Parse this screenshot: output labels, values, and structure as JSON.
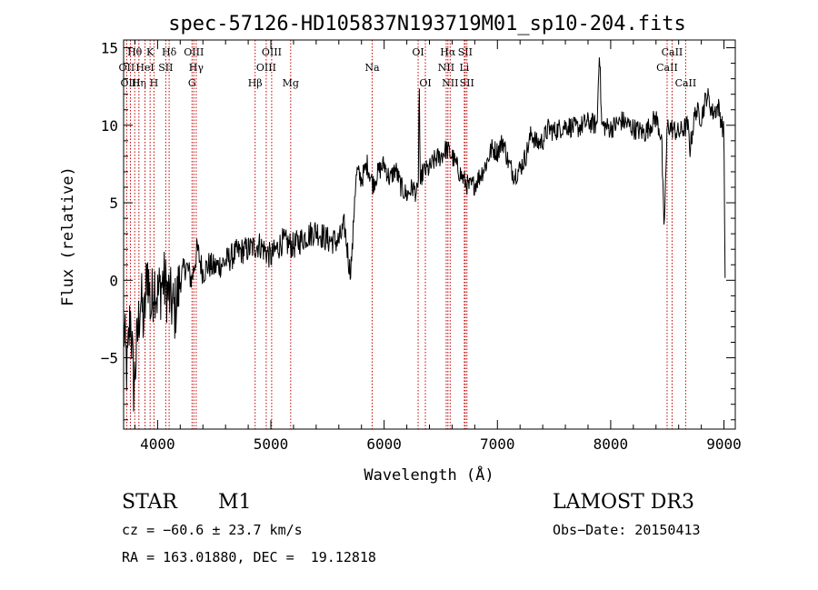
{
  "chart_data": {
    "type": "line",
    "title": "spec-57126-HD105837N193719M01_sp10-204.fits",
    "xlabel": "Wavelength (Å)",
    "ylabel": "Flux (relative)",
    "xlim": [
      3700,
      9100
    ],
    "ylim": [
      -9.6,
      15.5
    ],
    "xticks": [
      4000,
      5000,
      6000,
      7000,
      8000,
      9000
    ],
    "xtick_labels": [
      "4000",
      "5000",
      "6000",
      "7000",
      "8000",
      "9000"
    ],
    "yticks": [
      -5,
      0,
      5,
      10,
      15
    ],
    "ytick_labels": [
      "−5",
      "0",
      "5",
      "10",
      "15"
    ],
    "series": [
      {
        "name": "flux",
        "x": [
          3700,
          3730,
          3760,
          3790,
          3820,
          3850,
          3880,
          3910,
          3940,
          3970,
          4000,
          4050,
          4100,
          4150,
          4200,
          4250,
          4300,
          4350,
          4400,
          4450,
          4500,
          4600,
          4700,
          4800,
          4900,
          5000,
          5100,
          5200,
          5300,
          5400,
          5500,
          5600,
          5650,
          5700,
          5720,
          5740,
          5760,
          5800,
          5850,
          5900,
          5950,
          6000,
          6050,
          6100,
          6150,
          6200,
          6250,
          6300,
          6310,
          6320,
          6330,
          6350,
          6400,
          6450,
          6500,
          6550,
          6600,
          6650,
          6700,
          6750,
          6800,
          6850,
          6900,
          6950,
          7000,
          7050,
          7100,
          7150,
          7200,
          7250,
          7300,
          7350,
          7400,
          7450,
          7500,
          7600,
          7700,
          7800,
          7880,
          7900,
          7920,
          8000,
          8100,
          8200,
          8300,
          8400,
          8450,
          8470,
          8500,
          8600,
          8680,
          8700,
          8750,
          8800,
          8850,
          8900,
          8950,
          9000,
          9010
        ],
        "y": [
          -3,
          -6,
          -2,
          -7,
          -4,
          -1,
          -3,
          1,
          -2,
          0,
          -1,
          0,
          -1,
          -2,
          0,
          1,
          0,
          2,
          0.5,
          1,
          0.8,
          1.2,
          1.8,
          2,
          2.3,
          1.5,
          2.5,
          2.2,
          2.8,
          3.2,
          2.6,
          2.5,
          3.5,
          0.5,
          2,
          5.5,
          7,
          6.5,
          7.5,
          6.2,
          7,
          7.5,
          6.5,
          7.2,
          6,
          5.5,
          6,
          5.5,
          13,
          5.2,
          6.8,
          7,
          7.2,
          7.8,
          8,
          8.5,
          8,
          7.2,
          6.5,
          6,
          6.2,
          6.8,
          7.5,
          8.5,
          8.3,
          9,
          7.5,
          6.8,
          7.2,
          8,
          9.5,
          8.8,
          9,
          9.8,
          9.6,
          10,
          9.8,
          10.2,
          10,
          15.2,
          10,
          9.8,
          10.3,
          9.8,
          9.5,
          10.5,
          9.2,
          3,
          10,
          9.5,
          10,
          8.5,
          11,
          10.5,
          12,
          10.8,
          11.2,
          9.5,
          0
        ]
      }
    ],
    "lines": [
      {
        "label": "Hθ",
        "wavelength": 3798,
        "row": 1
      },
      {
        "label": "OII",
        "wavelength": 3727,
        "row": 2
      },
      {
        "label": "OIII",
        "wavelength": 3760,
        "row": 3
      },
      {
        "label": "Hη",
        "wavelength": 3835,
        "row": 3
      },
      {
        "label": "HeI",
        "wavelength": 3889,
        "row": 2
      },
      {
        "label": "K",
        "wavelength": 3934,
        "row": 1
      },
      {
        "label": "H",
        "wavelength": 3968,
        "row": 3
      },
      {
        "label": "SII",
        "wavelength": 4072,
        "row": 2
      },
      {
        "label": "Hδ",
        "wavelength": 4102,
        "row": 1
      },
      {
        "label": "OIII",
        "wavelength": 4320,
        "row": 1
      },
      {
        "label": "G",
        "wavelength": 4304,
        "row": 3
      },
      {
        "label": "Hγ",
        "wavelength": 4341,
        "row": 2
      },
      {
        "label": "Hβ",
        "wavelength": 4861,
        "row": 3
      },
      {
        "label": "OIII",
        "wavelength": 4959,
        "row": 2
      },
      {
        "label": "OIII",
        "wavelength": 5007,
        "row": 1
      },
      {
        "label": "Mg",
        "wavelength": 5175,
        "row": 3
      },
      {
        "label": "Na",
        "wavelength": 5894,
        "row": 2
      },
      {
        "label": "OI",
        "wavelength": 6300,
        "row": 1
      },
      {
        "label": "OI",
        "wavelength": 6364,
        "row": 3
      },
      {
        "label": "NII",
        "wavelength": 6548,
        "row": 2
      },
      {
        "label": "Hα",
        "wavelength": 6563,
        "row": 1
      },
      {
        "label": "NII",
        "wavelength": 6583,
        "row": 3
      },
      {
        "label": "Li",
        "wavelength": 6708,
        "row": 2
      },
      {
        "label": "SII",
        "wavelength": 6716,
        "row": 1
      },
      {
        "label": "SII",
        "wavelength": 6731,
        "row": 3
      },
      {
        "label": "CaII",
        "wavelength": 8498,
        "row": 2
      },
      {
        "label": "CaII",
        "wavelength": 8542,
        "row": 1
      },
      {
        "label": "CaII",
        "wavelength": 8662,
        "row": 3
      }
    ]
  },
  "info": {
    "class": "STAR",
    "subclass": "M1",
    "survey": "LAMOST DR3",
    "cz": "cz = −60.6 ± 23.7 km/s",
    "obs_date": "Obs−Date: 20150413",
    "coords": "RA = 163.01880, DEC =  19.12818"
  }
}
